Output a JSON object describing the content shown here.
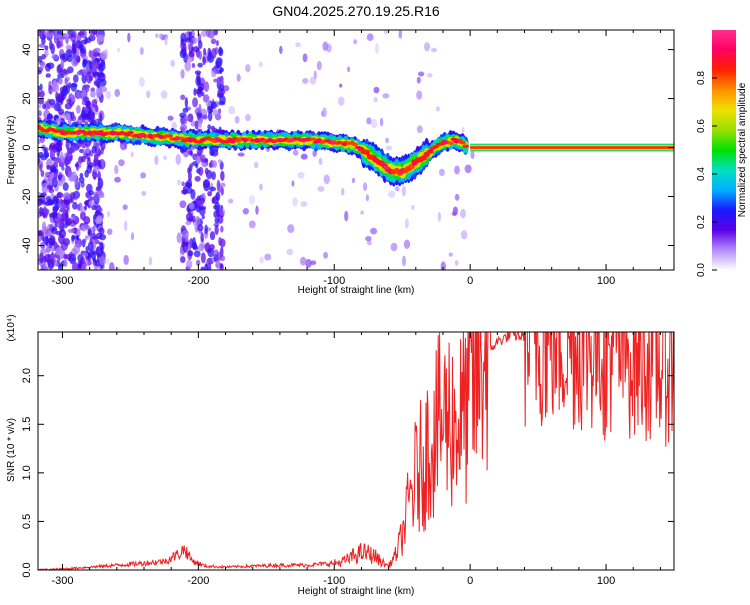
{
  "title": "GN04.2025.270.19.25.R16",
  "chart_data": [
    {
      "type": "heatmap",
      "xlabel": "Height of straight line (km)",
      "ylabel": "Frequency (Hz)",
      "xlim": [
        -318,
        150
      ],
      "ylim": [
        -50,
        48
      ],
      "xticks": [
        -300,
        -200,
        -100,
        0,
        100
      ],
      "yticks": [
        -40,
        -20,
        0,
        20,
        40
      ],
      "colorbar": {
        "label": "Normalized spectral amplitude",
        "range": [
          0.0,
          1.0
        ],
        "ticks": [
          "0.0",
          "0.2",
          "0.4",
          "0.6",
          "0.8"
        ],
        "colors": [
          "#ffffff",
          "#b48cff",
          "#5b00e6",
          "#1a1aff",
          "#00b0ff",
          "#00e0c0",
          "#00e000",
          "#9be000",
          "#f0e000",
          "#ff9000",
          "#ff2000",
          "#ff0060",
          "#ff2f8f"
        ]
      },
      "ridge": {
        "x": [
          -318,
          -300,
          -280,
          -260,
          -240,
          -220,
          -200,
          -180,
          -160,
          -140,
          -120,
          -100,
          -85,
          -70,
          -60,
          -50,
          -40,
          -30,
          -20,
          -10,
          0,
          50,
          100,
          150
        ],
        "y": [
          8,
          6,
          6,
          6,
          5,
          4,
          3,
          3,
          3,
          3,
          3,
          2,
          1,
          -5,
          -9,
          -10,
          -6,
          -2,
          2,
          3,
          0,
          0,
          0,
          0
        ]
      },
      "grid": false
    },
    {
      "type": "line",
      "xlabel": "Height of straight line (km)",
      "ylabel": "SNR (10 * v/v)",
      "y_multiplier": "(x10⁴)",
      "xlim": [
        -318,
        150
      ],
      "ylim": [
        0,
        2.45
      ],
      "xticks": [
        -300,
        -200,
        -100,
        0,
        100
      ],
      "yticks": [
        "0.0",
        "0.5",
        "1.0",
        "1.5",
        "2.0"
      ],
      "ytick_values": [
        0,
        0.5,
        1.0,
        1.5,
        2.0
      ],
      "color": "#ee2222",
      "series": [
        {
          "x": [
            -318,
            -300,
            -280,
            -260,
            -240,
            -225,
            -215,
            -210,
            -205,
            -195,
            -180,
            -160,
            -140,
            -120,
            -110,
            -100,
            -95,
            -90,
            -85,
            -80,
            -75,
            -70,
            -65,
            -60,
            -55,
            -50,
            -45,
            -40,
            -35,
            -30,
            -25,
            -20,
            -15,
            -10,
            -5,
            0,
            5,
            10,
            20,
            30,
            40,
            60,
            80,
            100,
            120,
            140,
            150
          ],
          "y": [
            0.0,
            0.01,
            0.03,
            0.05,
            0.07,
            0.09,
            0.16,
            0.22,
            0.1,
            0.04,
            0.03,
            0.04,
            0.05,
            0.05,
            0.06,
            0.07,
            0.08,
            0.11,
            0.15,
            0.18,
            0.17,
            0.14,
            0.08,
            0.04,
            0.15,
            0.35,
            0.7,
            0.95,
            1.1,
            1.3,
            1.45,
            1.55,
            1.6,
            1.5,
            1.6,
            1.75,
            1.95,
            2.2,
            2.35,
            2.42,
            2.4,
            2.37,
            2.33,
            2.29,
            2.22,
            2.14,
            2.07
          ]
        }
      ],
      "grid": false
    }
  ]
}
